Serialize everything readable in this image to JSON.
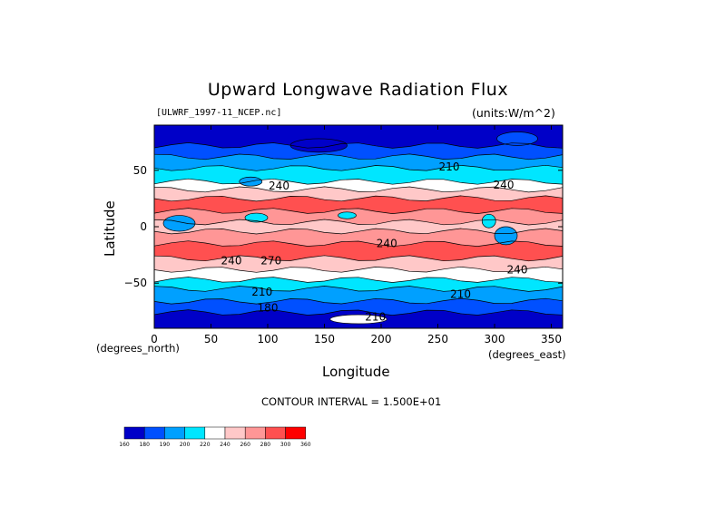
{
  "chart_data": {
    "type": "heatmap",
    "title": "Upward Longwave Radiation Flux",
    "subtitle_left": "[ULWRF_1997-11_NCEP.nc]",
    "subtitle_right": "(units:W/m^2)",
    "xlabel": "Longitude",
    "ylabel": "Latitude",
    "x_unit": "(degrees_north)",
    "y_unit": "(degrees_east)",
    "contour_interval": "CONTOUR INTERVAL = 1.500E+01",
    "xlim": [
      0,
      360
    ],
    "ylim": [
      -90,
      90
    ],
    "x_ticks": [
      "0",
      "50",
      "100",
      "150",
      "200",
      "250",
      "300",
      "350"
    ],
    "x_tick_values": [
      0,
      50,
      100,
      150,
      200,
      250,
      300,
      350
    ],
    "y_ticks": [
      "50",
      "0",
      "−50"
    ],
    "y_tick_values": [
      50,
      0,
      -50
    ],
    "colorbar": {
      "levels": [
        "160",
        "180",
        "190",
        "200",
        "220",
        "240",
        "260",
        "280",
        "300",
        "360"
      ],
      "colors": [
        "#0000c8",
        "#0050ff",
        "#00a0ff",
        "#00e6ff",
        "#ffffff",
        "#ffc8c8",
        "#ff9696",
        "#ff5050",
        "#ff0000"
      ]
    },
    "bands": [
      {
        "lat_top": 90,
        "lat_bottom": 72,
        "color": "#0000c8"
      },
      {
        "lat_top": 72,
        "lat_bottom": 62,
        "color": "#0050ff"
      },
      {
        "lat_top": 62,
        "lat_bottom": 52,
        "color": "#00a0ff"
      },
      {
        "lat_top": 52,
        "lat_bottom": 40,
        "color": "#00e6ff"
      },
      {
        "lat_top": 40,
        "lat_bottom": 33,
        "color": "#ffffff"
      },
      {
        "lat_top": 33,
        "lat_bottom": 25,
        "color": "#ffc8c8"
      },
      {
        "lat_top": 25,
        "lat_bottom": 14,
        "color": "#ff5050"
      },
      {
        "lat_top": 14,
        "lat_bottom": 4,
        "color": "#ff9696"
      },
      {
        "lat_top": 4,
        "lat_bottom": -4,
        "color": "#ffc8c8"
      },
      {
        "lat_top": -4,
        "lat_bottom": -15,
        "color": "#ff9696"
      },
      {
        "lat_top": -15,
        "lat_bottom": -28,
        "color": "#ff5050"
      },
      {
        "lat_top": -28,
        "lat_bottom": -38,
        "color": "#ffc8c8"
      },
      {
        "lat_top": -38,
        "lat_bottom": -47,
        "color": "#ffffff"
      },
      {
        "lat_top": -47,
        "lat_bottom": -55,
        "color": "#00e6ff"
      },
      {
        "lat_top": -55,
        "lat_bottom": -66,
        "color": "#00a0ff"
      },
      {
        "lat_top": -66,
        "lat_bottom": -76,
        "color": "#0050ff"
      },
      {
        "lat_top": -76,
        "lat_bottom": -90,
        "color": "#0000c8"
      }
    ],
    "blobs": [
      {
        "lon": 85,
        "lat": 40,
        "rx_deg": 10,
        "ry_deg": 4,
        "color": "#00a0ff"
      },
      {
        "lon": 22,
        "lat": 3,
        "rx_deg": 14,
        "ry_deg": 7,
        "color": "#00a0ff"
      },
      {
        "lon": 90,
        "lat": 8,
        "rx_deg": 10,
        "ry_deg": 4,
        "color": "#00e6ff"
      },
      {
        "lon": 295,
        "lat": 5,
        "rx_deg": 6,
        "ry_deg": 6,
        "color": "#00e6ff"
      },
      {
        "lon": 310,
        "lat": -8,
        "rx_deg": 10,
        "ry_deg": 8,
        "color": "#00a0ff"
      },
      {
        "lon": 170,
        "lat": 10,
        "rx_deg": 8,
        "ry_deg": 3,
        "color": "#00e6ff"
      },
      {
        "lon": 180,
        "lat": -82,
        "rx_deg": 25,
        "ry_deg": 4,
        "color": "#ffffff"
      },
      {
        "lon": 320,
        "lat": 78,
        "rx_deg": 18,
        "ry_deg": 6,
        "color": "#0050ff"
      },
      {
        "lon": 145,
        "lat": 72,
        "rx_deg": 25,
        "ry_deg": 6,
        "color": "#0000c8"
      }
    ],
    "contour_labels": [
      {
        "text": "210",
        "lon": 260,
        "lat": 53
      },
      {
        "text": "240",
        "lon": 110,
        "lat": 36
      },
      {
        "text": "240",
        "lon": 308,
        "lat": 37
      },
      {
        "text": "240",
        "lon": 205,
        "lat": -15
      },
      {
        "text": "240",
        "lon": 68,
        "lat": -30
      },
      {
        "text": "270",
        "lon": 103,
        "lat": -30
      },
      {
        "text": "240",
        "lon": 320,
        "lat": -38
      },
      {
        "text": "210",
        "lon": 95,
        "lat": -58
      },
      {
        "text": "210",
        "lon": 270,
        "lat": -60
      },
      {
        "text": "180",
        "lon": 100,
        "lat": -72
      },
      {
        "text": "210",
        "lon": 195,
        "lat": -80
      }
    ]
  }
}
